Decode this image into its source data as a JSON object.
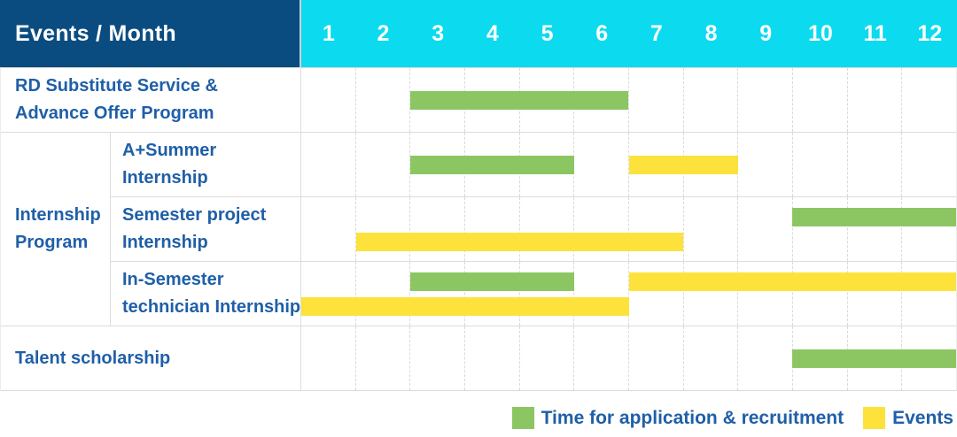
{
  "title": "Events / Month",
  "months": [
    "1",
    "2",
    "3",
    "4",
    "5",
    "6",
    "7",
    "8",
    "9",
    "10",
    "11",
    "12"
  ],
  "colors": {
    "header_navy": "#0A4C80",
    "header_cyan": "#0CDAEF",
    "header_text": "#FFFFFF",
    "label_text": "#1F5FA8",
    "grid_solid": "#DCDCDC",
    "grid_dashed": "#D9D9D9",
    "bar_green": "#8CC663",
    "bar_yellow": "#FDE23C"
  },
  "group": {
    "name": "Internship Program",
    "label_lines": [
      "Internship",
      "Program"
    ]
  },
  "chart_data": {
    "type": "bar",
    "variant": "gantt-timeline",
    "title": "Events / Month",
    "x_axis": {
      "label": "Month",
      "range": [
        1,
        12
      ],
      "ticks": [
        "1",
        "2",
        "3",
        "4",
        "5",
        "6",
        "7",
        "8",
        "9",
        "10",
        "11",
        "12"
      ]
    },
    "grid": "dashed-vertical-month-lines",
    "legend_position": "bottom-right",
    "series_legend": [
      {
        "series": "Time for application & recruitment",
        "swatch": "green",
        "color": "#8CC663"
      },
      {
        "series": "Events",
        "swatch": "yellow",
        "color": "#FDE23C"
      }
    ],
    "rows": [
      {
        "group": "",
        "label": "RD Substitute Service & Advance Offer Program",
        "label_lines": [
          "RD Substitute Service &",
          "Advance Offer Program"
        ],
        "bars": [
          {
            "series": "Time for application & recruitment",
            "start_month": 3,
            "end_month": 6,
            "lane": "middle"
          }
        ]
      },
      {
        "group": "Internship Program",
        "label": "A+Summer Internship",
        "label_lines": [
          "A+Summer",
          "Internship"
        ],
        "bars": [
          {
            "series": "Time for application & recruitment",
            "start_month": 3,
            "end_month": 5,
            "lane": "middle"
          },
          {
            "series": "Events",
            "start_month": 7,
            "end_month": 8,
            "lane": "middle"
          }
        ]
      },
      {
        "group": "Internship Program",
        "label": "Semester project Internship",
        "label_lines": [
          "Semester project",
          "Internship"
        ],
        "bars": [
          {
            "series": "Time for application & recruitment",
            "start_month": 10,
            "end_month": 12,
            "lane": "top"
          },
          {
            "series": "Events",
            "start_month": 2,
            "end_month": 7,
            "lane": "bottom"
          }
        ]
      },
      {
        "group": "Internship Program",
        "label": "In-Semester technician Internship",
        "label_lines": [
          "In-Semester",
          "technician Internship"
        ],
        "bars": [
          {
            "series": "Time for application & recruitment",
            "start_month": 3,
            "end_month": 5,
            "lane": "top"
          },
          {
            "series": "Events",
            "start_month": 7,
            "end_month": 12,
            "lane": "top"
          },
          {
            "series": "Events",
            "start_month": 1,
            "end_month": 6,
            "lane": "bottom"
          }
        ]
      },
      {
        "group": "",
        "label": "Talent scholarship",
        "label_lines": [
          "Talent scholarship"
        ],
        "bars": [
          {
            "series": "Time for application & recruitment",
            "start_month": 10,
            "end_month": 12,
            "lane": "middle"
          }
        ]
      }
    ]
  },
  "legend": {
    "recruitment_label": "Time for application & recruitment",
    "events_label": "Events"
  }
}
